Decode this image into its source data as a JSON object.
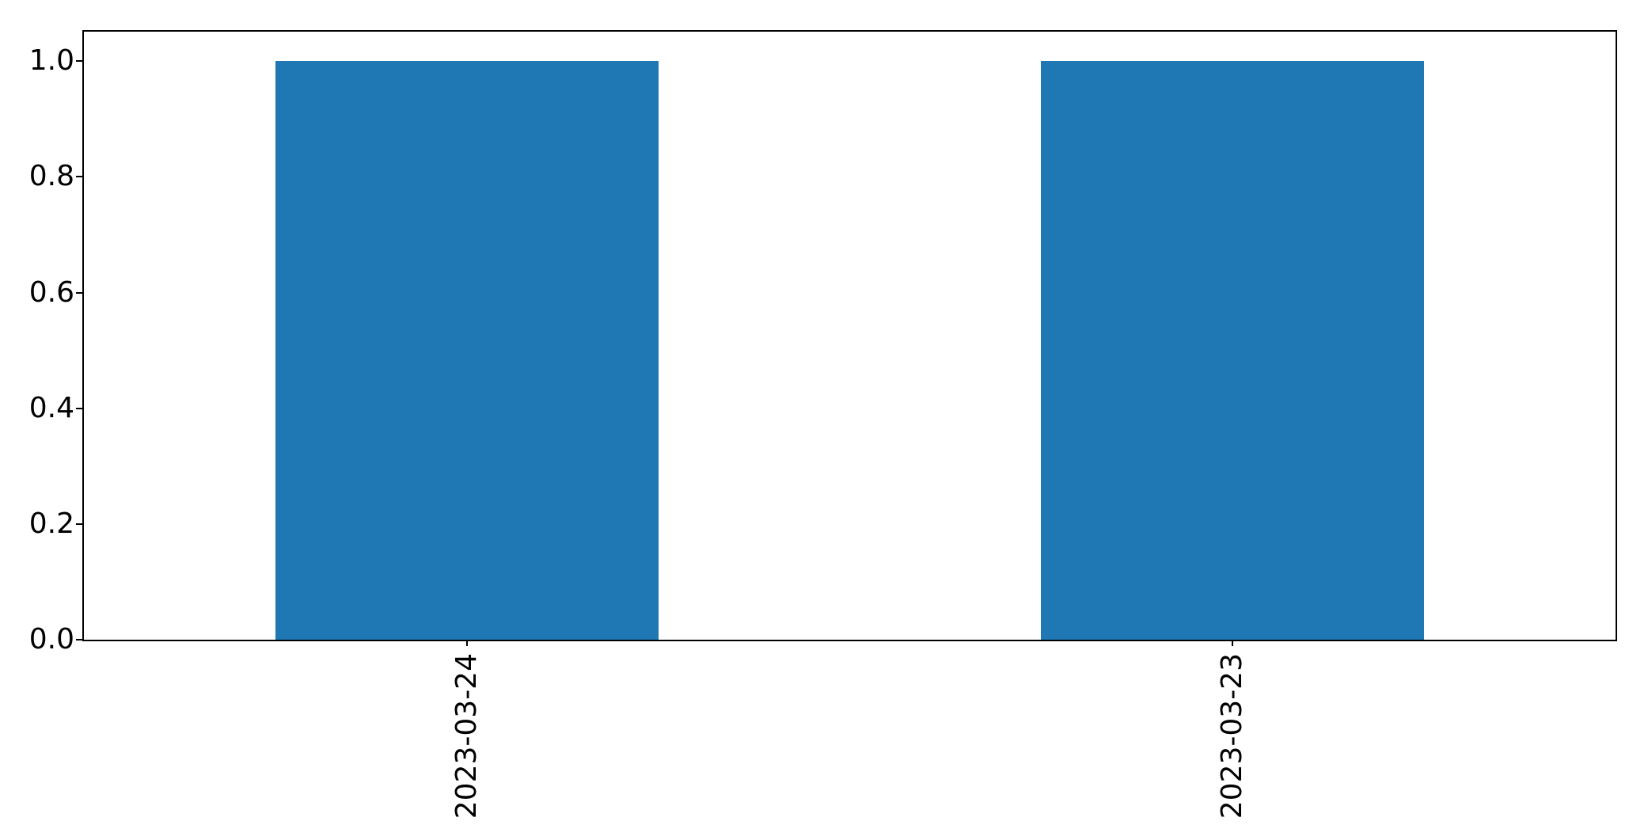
{
  "chart_data": {
    "type": "bar",
    "title": "",
    "xlabel": "",
    "ylabel": "",
    "categories": [
      "2023-03-24",
      "2023-03-23"
    ],
    "values": [
      1.0,
      1.0
    ],
    "bar_positions": [
      0,
      1
    ],
    "bar_width": 0.5,
    "xlim": [
      -0.5,
      1.5
    ],
    "ylim": [
      0,
      1.051
    ],
    "yticks": [
      0.0,
      0.2,
      0.4,
      0.6,
      0.8,
      1.0
    ],
    "ytick_labels": [
      "0.0",
      "0.2",
      "0.4",
      "0.6",
      "0.8",
      "1.0"
    ],
    "xtick_rotation_deg": 90,
    "grid": false,
    "legend": "none",
    "bar_color": "#1f77b4",
    "axis_color": "#000000",
    "tick_label_color": "#000000",
    "plot_background": "#ffffff"
  }
}
